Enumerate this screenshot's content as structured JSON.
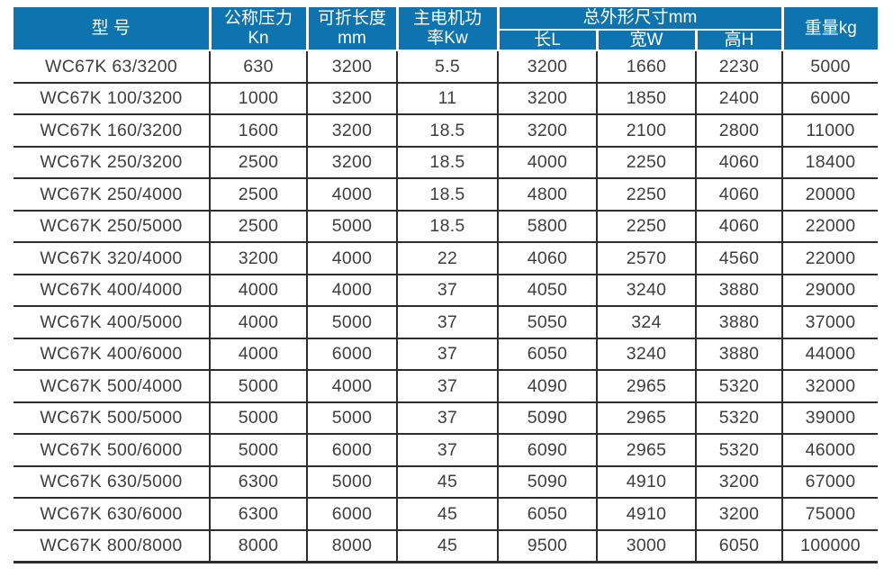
{
  "colors": {
    "header_bg": "#0d74b0",
    "header_text": "#ffffff",
    "grid_line": "#2d2d2d",
    "body_text": "#3e3e3e"
  },
  "table": {
    "header": {
      "model": "型 号",
      "pressure_line1": "公称压力",
      "pressure_line2": "Kn",
      "fold_length_line1": "可折长度",
      "fold_length_line2": "mm",
      "motor_power_line1": "主电机功",
      "motor_power_line2": "率Kw",
      "dimensions_group": "总外形尺寸mm",
      "dim_length": "长L",
      "dim_width": "宽W",
      "dim_height": "高H",
      "weight": "重量kg"
    },
    "rows": [
      [
        "WC67K 63/3200",
        "630",
        "3200",
        "5.5",
        "3200",
        "1660",
        "2230",
        "5000"
      ],
      [
        "WC67K 100/3200",
        "1000",
        "3200",
        "11",
        "3200",
        "1850",
        "2400",
        "6000"
      ],
      [
        "WC67K 160/3200",
        "1600",
        "3200",
        "18.5",
        "3200",
        "2100",
        "2800",
        "11000"
      ],
      [
        "WC67K 250/3200",
        "2500",
        "3200",
        "18.5",
        "4000",
        "2250",
        "4060",
        "18400"
      ],
      [
        "WC67K 250/4000",
        "2500",
        "4000",
        "18.5",
        "4800",
        "2250",
        "4060",
        "20000"
      ],
      [
        "WC67K 250/5000",
        "2500",
        "5000",
        "18.5",
        "5800",
        "2250",
        "4060",
        "22000"
      ],
      [
        "WC67K 320/4000",
        "3200",
        "4000",
        "22",
        "4060",
        "2570",
        "4560",
        "22000"
      ],
      [
        "WC67K 400/4000",
        "4000",
        "4000",
        "37",
        "4050",
        "3240",
        "3880",
        "29000"
      ],
      [
        "WC67K 400/5000",
        "4000",
        "5000",
        "37",
        "5050",
        "324",
        "3880",
        "37000"
      ],
      [
        "WC67K 400/6000",
        "4000",
        "6000",
        "37",
        "6050",
        "3240",
        "3880",
        "44000"
      ],
      [
        "WC67K 500/4000",
        "5000",
        "4000",
        "37",
        "4090",
        "2965",
        "5320",
        "32000"
      ],
      [
        "WC67K 500/5000",
        "5000",
        "5000",
        "37",
        "5090",
        "2965",
        "5320",
        "39000"
      ],
      [
        "WC67K 500/6000",
        "5000",
        "6000",
        "37",
        "6090",
        "2965",
        "5320",
        "46000"
      ],
      [
        "WC67K 630/5000",
        "6300",
        "5000",
        "45",
        "5090",
        "4910",
        "3200",
        "67000"
      ],
      [
        "WC67K 630/6000",
        "6300",
        "6000",
        "45",
        "6050",
        "4910",
        "3200",
        "75000"
      ],
      [
        "WC67K 800/8000",
        "8000",
        "8000",
        "45",
        "9500",
        "3000",
        "6050",
        "100000"
      ]
    ]
  }
}
